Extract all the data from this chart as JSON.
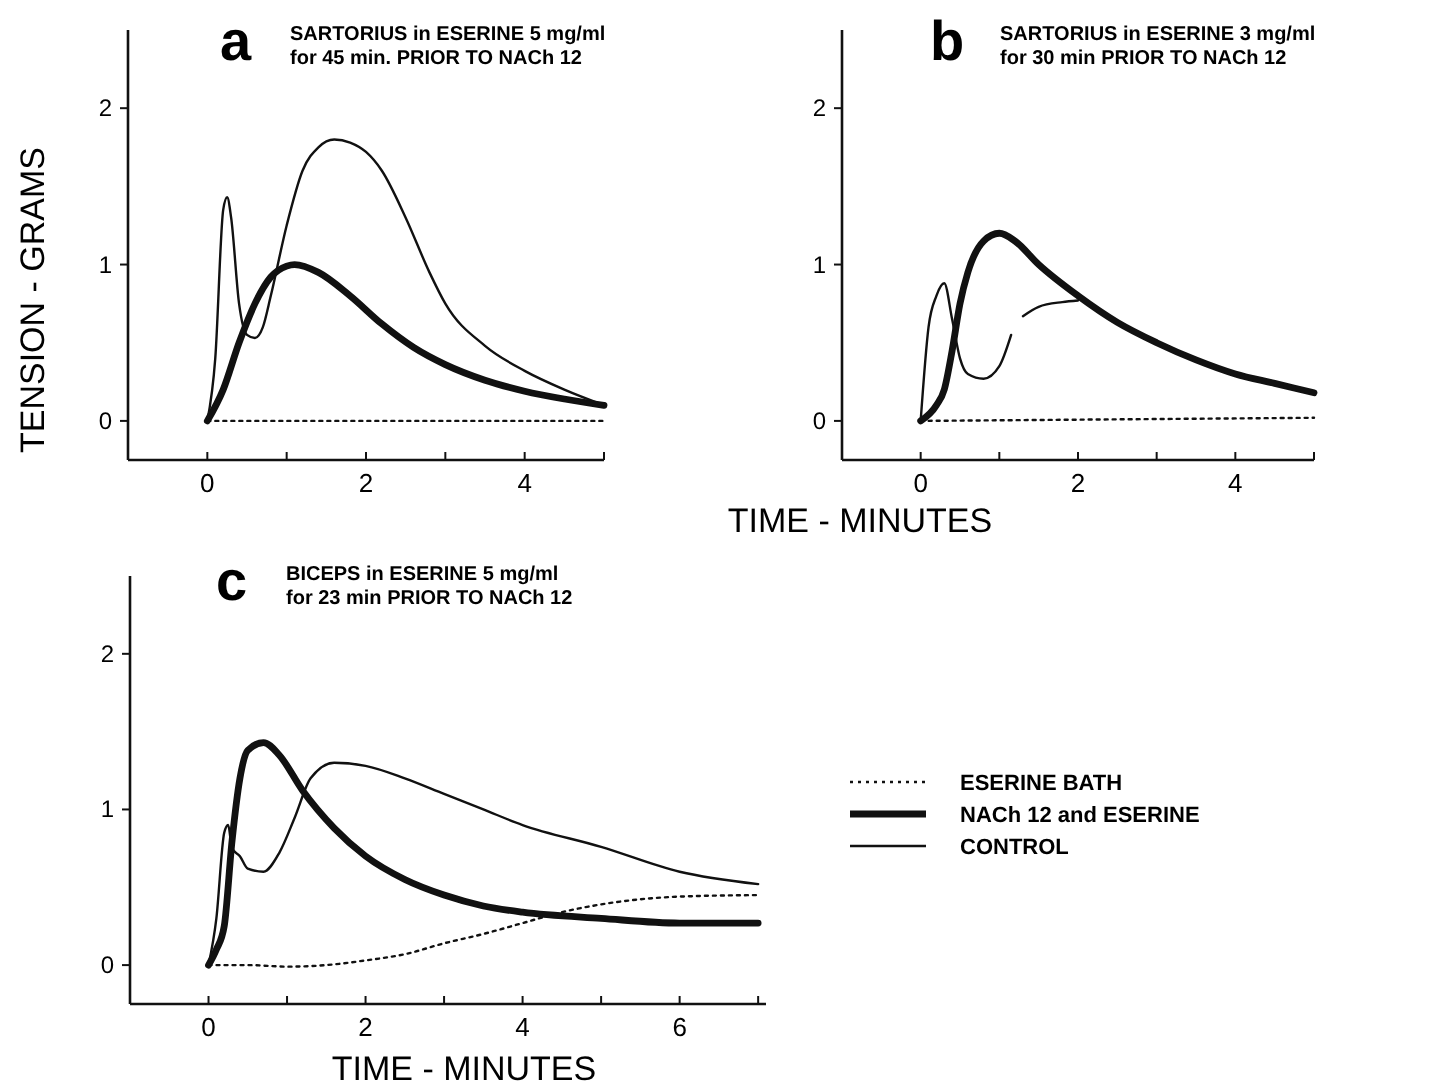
{
  "chart_data": [
    {
      "type": "line",
      "title": "a",
      "subtitle": "SARTORIUS in ESERINE 5 mg/ml\nfor 45 min. PRIOR TO NACh 12",
      "ylabel": "TENSION - GRAMS",
      "xlim": [
        -1,
        5
      ],
      "ylim": [
        -0.25,
        2.5
      ],
      "xticks": [
        0,
        {
          "value": 1,
          "label": null
        },
        2,
        {
          "value": 3,
          "label": null
        },
        4,
        {
          "value": 5,
          "label": null
        }
      ],
      "yticks": [
        0,
        1,
        2
      ],
      "grid": false,
      "legend": false,
      "marker": "none",
      "series": [
        {
          "color": "#111111",
          "line_style": "dotted",
          "x": [
            0,
            5
          ],
          "values": [
            0,
            0
          ]
        },
        {
          "color": "#111111",
          "line_style": "solid",
          "x": [
            0,
            0.2,
            0.4,
            0.6,
            0.8,
            1.0,
            1.1,
            1.4,
            1.8,
            2.2,
            2.6,
            3.0,
            3.5,
            4.0,
            4.5,
            5
          ],
          "values": [
            0,
            0.2,
            0.5,
            0.75,
            0.92,
            0.99,
            1.0,
            0.95,
            0.8,
            0.62,
            0.47,
            0.36,
            0.26,
            0.19,
            0.14,
            0.1
          ]
        },
        {
          "color": "#111111",
          "line_style": "solid",
          "x": [
            0,
            0.1,
            0.2,
            0.25,
            0.3,
            0.4,
            0.5,
            0.6,
            0.7,
            0.8,
            1.0,
            1.2,
            1.4,
            1.6,
            1.8,
            2.0,
            2.2,
            2.5,
            2.8,
            3.0,
            3.5,
            4.0,
            4.5,
            5
          ],
          "values": [
            0,
            0.4,
            1.35,
            1.43,
            1.3,
            0.75,
            0.55,
            0.53,
            0.6,
            0.8,
            1.25,
            1.6,
            1.75,
            1.8,
            1.78,
            1.72,
            1.6,
            1.3,
            0.95,
            0.75,
            0.48,
            0.32,
            0.2,
            0.1
          ]
        }
      ]
    },
    {
      "type": "line",
      "title": "b",
      "subtitle": "SARTORIUS in ESERINE 3 mg/ml\nfor 30 min PRIOR TO NACh 12",
      "xlabel": "TIME - MINUTES",
      "xlim": [
        -1,
        5
      ],
      "ylim": [
        -0.25,
        2.5
      ],
      "xticks": [
        0,
        {
          "value": 1,
          "label": null
        },
        2,
        {
          "value": 3,
          "label": null
        },
        4,
        {
          "value": 5,
          "label": null
        }
      ],
      "yticks": [
        0,
        1,
        2
      ],
      "grid": false,
      "legend": false,
      "marker": "none",
      "series": [
        {
          "color": "#111111",
          "line_style": "dotted",
          "x": [
            0,
            5
          ],
          "values": [
            0,
            0.02
          ]
        },
        {
          "color": "#111111",
          "line_style": "solid",
          "x": [
            0,
            0.2,
            0.3,
            0.4,
            0.5,
            0.6,
            0.8,
            1.0,
            1.2,
            1.5,
            2.0,
            2.5,
            3.0,
            3.5,
            4.0,
            4.5,
            5
          ],
          "values": [
            0,
            0.1,
            0.2,
            0.45,
            0.75,
            0.95,
            1.15,
            1.2,
            1.15,
            1.0,
            0.8,
            0.63,
            0.5,
            0.39,
            0.3,
            0.24,
            0.18
          ]
        },
        {
          "color": "#111111",
          "line_style": "solid",
          "x": [
            0,
            0.1,
            0.2,
            0.3,
            0.4,
            0.5,
            0.6,
            0.8,
            1.0,
            1.15,
            1.2,
            1.3,
            1.5,
            1.8,
            2.0
          ],
          "values": [
            0,
            0.6,
            0.8,
            0.88,
            0.65,
            0.4,
            0.3,
            0.27,
            0.35,
            0.55,
            null,
            0.67,
            0.73,
            0.76,
            0.77
          ]
        }
      ]
    },
    {
      "type": "line",
      "title": "c",
      "subtitle": "BICEPS in ESERINE 5 mg/ml\nfor 23 min PRIOR TO NACh 12",
      "xlabel": "TIME - MINUTES",
      "xlim": [
        -1,
        7.1
      ],
      "ylim": [
        -0.25,
        2.5
      ],
      "xticks": [
        0,
        {
          "value": 1,
          "label": null
        },
        2,
        {
          "value": 3,
          "label": null
        },
        4,
        {
          "value": 5,
          "label": null
        },
        6,
        {
          "value": 7,
          "label": null
        }
      ],
      "yticks": [
        0,
        1,
        2
      ],
      "grid": false,
      "legend": "right",
      "marker": "none",
      "series": [
        {
          "name": "ESERINE BATH",
          "color": "#111111",
          "line_style": "dotted",
          "x": [
            0,
            0.5,
            1.0,
            1.5,
            2.0,
            2.5,
            3.0,
            3.5,
            4.0,
            4.5,
            5.0,
            6.0,
            7.0
          ],
          "values": [
            0,
            0,
            -0.01,
            0,
            0.03,
            0.07,
            0.14,
            0.2,
            0.27,
            0.34,
            0.39,
            0.44,
            0.45
          ]
        },
        {
          "name": "NACh 12 and ESERINE",
          "color": "#111111",
          "line_style": "solid",
          "x": [
            0,
            0.1,
            0.2,
            0.3,
            0.4,
            0.5,
            0.7,
            0.9,
            1.2,
            1.6,
            2.0,
            2.5,
            3.0,
            3.5,
            4.0,
            5.0,
            6.0,
            7.0
          ],
          "values": [
            0,
            0.1,
            0.25,
            0.8,
            1.2,
            1.38,
            1.43,
            1.35,
            1.12,
            0.88,
            0.7,
            0.55,
            0.45,
            0.38,
            0.34,
            0.3,
            0.27,
            0.27
          ]
        },
        {
          "name": "CONTROL",
          "color": "#111111",
          "line_style": "solid",
          "x": [
            0,
            0.1,
            0.2,
            0.25,
            0.3,
            0.4,
            0.5,
            0.7,
            0.9,
            1.1,
            1.3,
            1.6,
            2.0,
            2.5,
            3.0,
            3.5,
            4.0,
            5.0,
            6.0,
            7.0
          ],
          "values": [
            0,
            0.3,
            0.85,
            0.9,
            0.75,
            0.7,
            0.62,
            0.6,
            0.72,
            0.95,
            1.2,
            1.3,
            1.28,
            1.2,
            1.1,
            1.0,
            0.9,
            0.76,
            0.6,
            0.52
          ]
        }
      ]
    }
  ]
}
